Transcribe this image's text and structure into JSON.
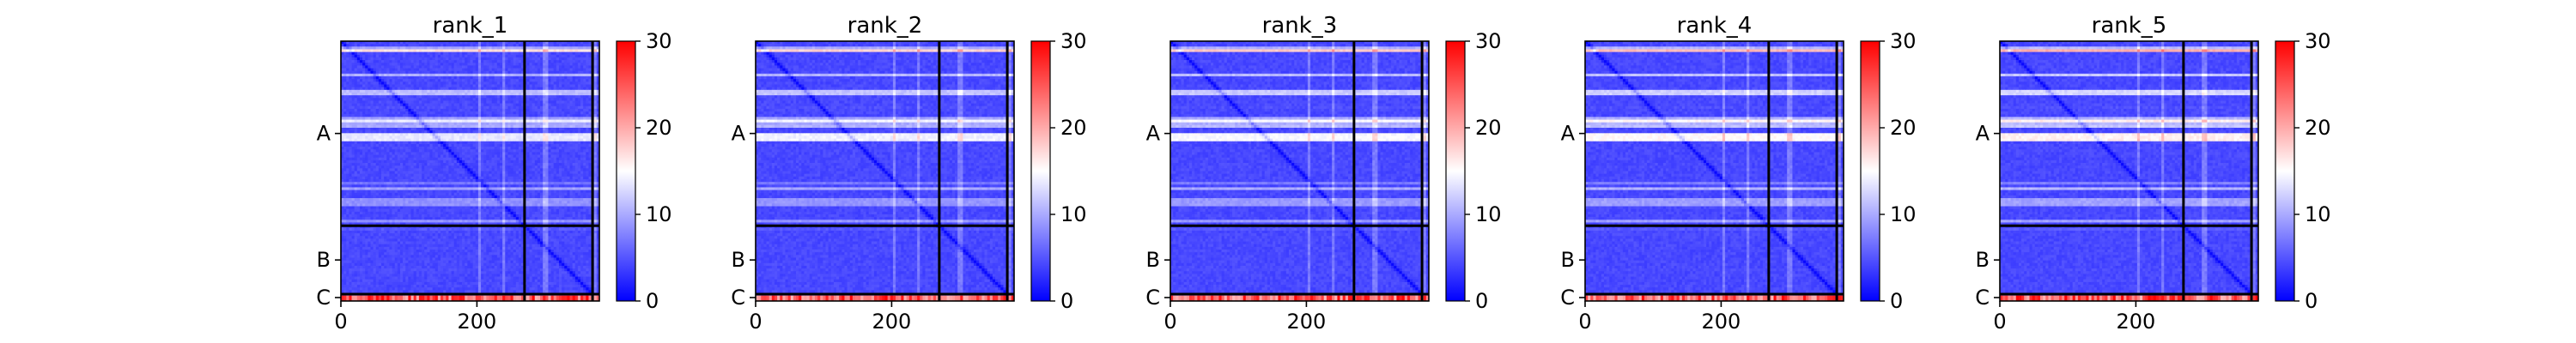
{
  "figure": {
    "panels": [
      {
        "title": "rank_1",
        "title_key": "t1"
      },
      {
        "title": "rank_2",
        "title_key": "t2"
      },
      {
        "title": "rank_3",
        "title_key": "t3"
      },
      {
        "title": "rank_4",
        "title_key": "t4"
      },
      {
        "title": "rank_5",
        "title_key": "t5"
      }
    ]
  },
  "chart_data": {
    "type": "heatmap",
    "colormap": "bwr",
    "colormap_colors": [
      "#0000ff",
      "#ffffff",
      "#ff0000"
    ],
    "color_range": [
      0,
      30
    ],
    "colorbar_ticks": [
      "0",
      "10",
      "20",
      "30"
    ],
    "x_range": [
      0,
      380
    ],
    "x_ticks": [
      "0",
      "200"
    ],
    "x_tick_values": [
      0,
      200
    ],
    "y_tick_labels": [
      "A",
      "B",
      "C"
    ],
    "chain_boundaries": [
      270,
      370
    ],
    "grid": false,
    "panels": [
      {
        "title": "rank_1"
      },
      {
        "title": "rank_2"
      },
      {
        "title": "rank_3"
      },
      {
        "title": "rank_4"
      },
      {
        "title": "rank_5"
      }
    ]
  }
}
